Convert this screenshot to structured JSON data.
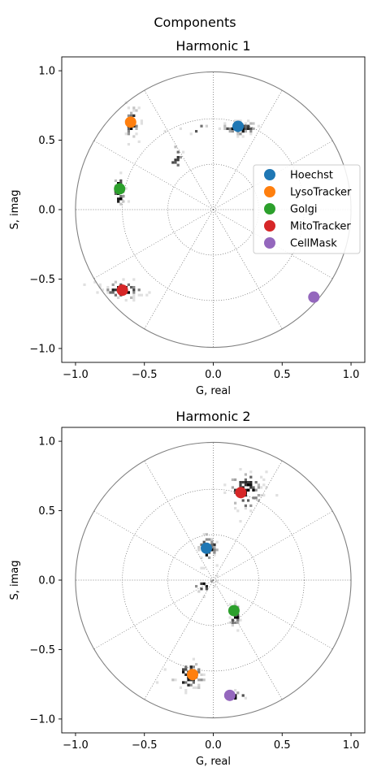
{
  "figure": {
    "suptitle": "Components"
  },
  "colors": {
    "grid": "#666666",
    "circle": "#808080",
    "axes": "#000000"
  },
  "legend": {
    "placement": "center-right of top panel",
    "entries": [
      {
        "name": "Hoechst",
        "color": "#1f77b4"
      },
      {
        "name": "LysoTracker",
        "color": "#ff7f0e"
      },
      {
        "name": "Golgi",
        "color": "#2ca02c"
      },
      {
        "name": "MitoTracker",
        "color": "#d62728"
      },
      {
        "name": "CellMask",
        "color": "#9467bd"
      }
    ]
  },
  "chart_data": [
    {
      "type": "scatter",
      "title": "Harmonic 1",
      "xlabel": "G, real",
      "ylabel": "S, imag",
      "xlim": [
        -1.1,
        1.1
      ],
      "ylim": [
        -1.1,
        1.1
      ],
      "xticks": [
        -1.0,
        -0.5,
        0.0,
        0.5,
        1.0
      ],
      "yticks": [
        -1.0,
        -0.5,
        0.0,
        0.5,
        1.0
      ],
      "xtick_labels": [
        "−1.0",
        "−0.5",
        "0.0",
        "0.5",
        "1.0"
      ],
      "ytick_labels": [
        "−1.0",
        "−0.5",
        "0.0",
        "0.5",
        "1.0"
      ],
      "polar_grid": {
        "unit_circle": true,
        "radii": [
          0.33,
          0.66
        ],
        "spoke_step_deg": 30
      },
      "series": [
        {
          "name": "Hoechst",
          "color": "#1f77b4",
          "x": 0.18,
          "y": 0.6
        },
        {
          "name": "LysoTracker",
          "color": "#ff7f0e",
          "x": -0.6,
          "y": 0.63
        },
        {
          "name": "Golgi",
          "color": "#2ca02c",
          "x": -0.68,
          "y": 0.15
        },
        {
          "name": "MitoTracker",
          "color": "#d62728",
          "x": -0.66,
          "y": -0.58
        },
        {
          "name": "CellMask",
          "color": "#9467bd",
          "x": 0.73,
          "y": -0.63
        }
      ],
      "histogram_clusters": [
        {
          "cx": 0.18,
          "cy": 0.6,
          "sx": 0.07,
          "sy": 0.025,
          "count": 55
        },
        {
          "cx": -0.6,
          "cy": 0.63,
          "sx": 0.025,
          "sy": 0.06,
          "count": 45
        },
        {
          "cx": -0.69,
          "cy": 0.15,
          "sx": 0.02,
          "sy": 0.07,
          "count": 40
        },
        {
          "cx": -0.66,
          "cy": -0.57,
          "sx": 0.08,
          "sy": 0.03,
          "count": 60
        },
        {
          "cx": -0.28,
          "cy": 0.38,
          "sx": 0.03,
          "sy": 0.05,
          "count": 10
        },
        {
          "cx": -0.15,
          "cy": 0.6,
          "sx": 0.06,
          "sy": 0.02,
          "count": 6
        }
      ]
    },
    {
      "type": "scatter",
      "title": "Harmonic 2",
      "xlabel": "G, real",
      "ylabel": "S, imag",
      "xlim": [
        -1.1,
        1.1
      ],
      "ylim": [
        -1.1,
        1.1
      ],
      "xticks": [
        -1.0,
        -0.5,
        0.0,
        0.5,
        1.0
      ],
      "yticks": [
        -1.0,
        -0.5,
        0.0,
        0.5,
        1.0
      ],
      "xtick_labels": [
        "−1.0",
        "−0.5",
        "0.0",
        "0.5",
        "1.0"
      ],
      "ytick_labels": [
        "−1.0",
        "−0.5",
        "0.0",
        "0.5",
        "1.0"
      ],
      "polar_grid": {
        "unit_circle": true,
        "radii": [
          0.33,
          0.66
        ],
        "spoke_step_deg": 30
      },
      "series": [
        {
          "name": "Hoechst",
          "color": "#1f77b4",
          "x": -0.05,
          "y": 0.23
        },
        {
          "name": "LysoTracker",
          "color": "#ff7f0e",
          "x": -0.15,
          "y": -0.68
        },
        {
          "name": "Golgi",
          "color": "#2ca02c",
          "x": 0.15,
          "y": -0.22
        },
        {
          "name": "MitoTracker",
          "color": "#d62728",
          "x": 0.2,
          "y": 0.63
        },
        {
          "name": "CellMask",
          "color": "#9467bd",
          "x": 0.12,
          "y": -0.83
        }
      ],
      "histogram_clusters": [
        {
          "cx": 0.22,
          "cy": 0.65,
          "sx": 0.07,
          "sy": 0.08,
          "count": 80
        },
        {
          "cx": -0.05,
          "cy": 0.24,
          "sx": 0.04,
          "sy": 0.05,
          "count": 40
        },
        {
          "cx": 0.15,
          "cy": -0.24,
          "sx": 0.02,
          "sy": 0.05,
          "count": 30
        },
        {
          "cx": -0.18,
          "cy": -0.68,
          "sx": 0.06,
          "sy": 0.05,
          "count": 60
        },
        {
          "cx": 0.14,
          "cy": -0.83,
          "sx": 0.05,
          "sy": 0.015,
          "count": 20
        },
        {
          "cx": -0.08,
          "cy": -0.02,
          "sx": 0.04,
          "sy": 0.05,
          "count": 12
        }
      ]
    }
  ]
}
